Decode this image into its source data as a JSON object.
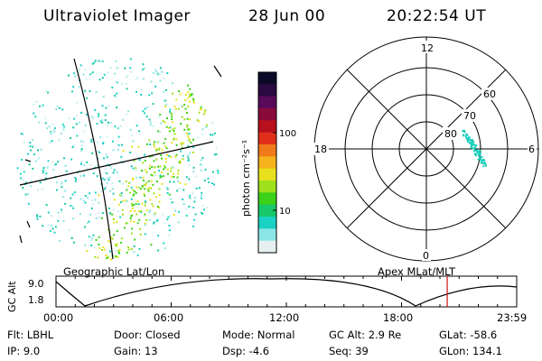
{
  "header": {
    "instrument": "Ultraviolet Imager",
    "date": "28 Jun 00",
    "time": "20:22:54 UT"
  },
  "colorbar": {
    "unit_label": "photon cm⁻²s⁻¹",
    "ticks": [
      "100",
      "10"
    ],
    "colors": [
      "#0a0a28",
      "#2a0a40",
      "#5a0a5a",
      "#8a0a3a",
      "#b8101c",
      "#e0301a",
      "#f07a1a",
      "#f5b21a",
      "#e8e01c",
      "#9ee01c",
      "#3cd21a",
      "#18c86a",
      "#1ad2c4",
      "#8be6e6",
      "#e6f0f0"
    ]
  },
  "left_panel": {
    "caption": "Geographic Lat/Lon"
  },
  "polar_plot": {
    "caption": "Apex MLat/MLT",
    "mlt_labels": [
      "12",
      "18",
      "6",
      "0"
    ],
    "mlat_labels": [
      "60",
      "70",
      "80"
    ]
  },
  "altitude_strip": {
    "axis_label": "GC Alt",
    "y_ticks": [
      "9.0",
      "1.8"
    ],
    "x_ticks": [
      "00:00",
      "06:00",
      "12:00",
      "18:00",
      "23:59"
    ],
    "current_marker_hour": 20.38,
    "marker_color": "#d01010"
  },
  "footer": {
    "filter": "Flt: LBHL",
    "ip": "IP:  9.0",
    "door": "Door: Closed",
    "gain": "Gain: 13",
    "mode": "Mode: Normal",
    "dsp": "Dsp:    -4.6",
    "gc_alt": "GC Alt: 2.9 Re",
    "seq": "Seq: 39",
    "glat": "GLat: -58.6",
    "glon": "GLon: 134.1"
  }
}
